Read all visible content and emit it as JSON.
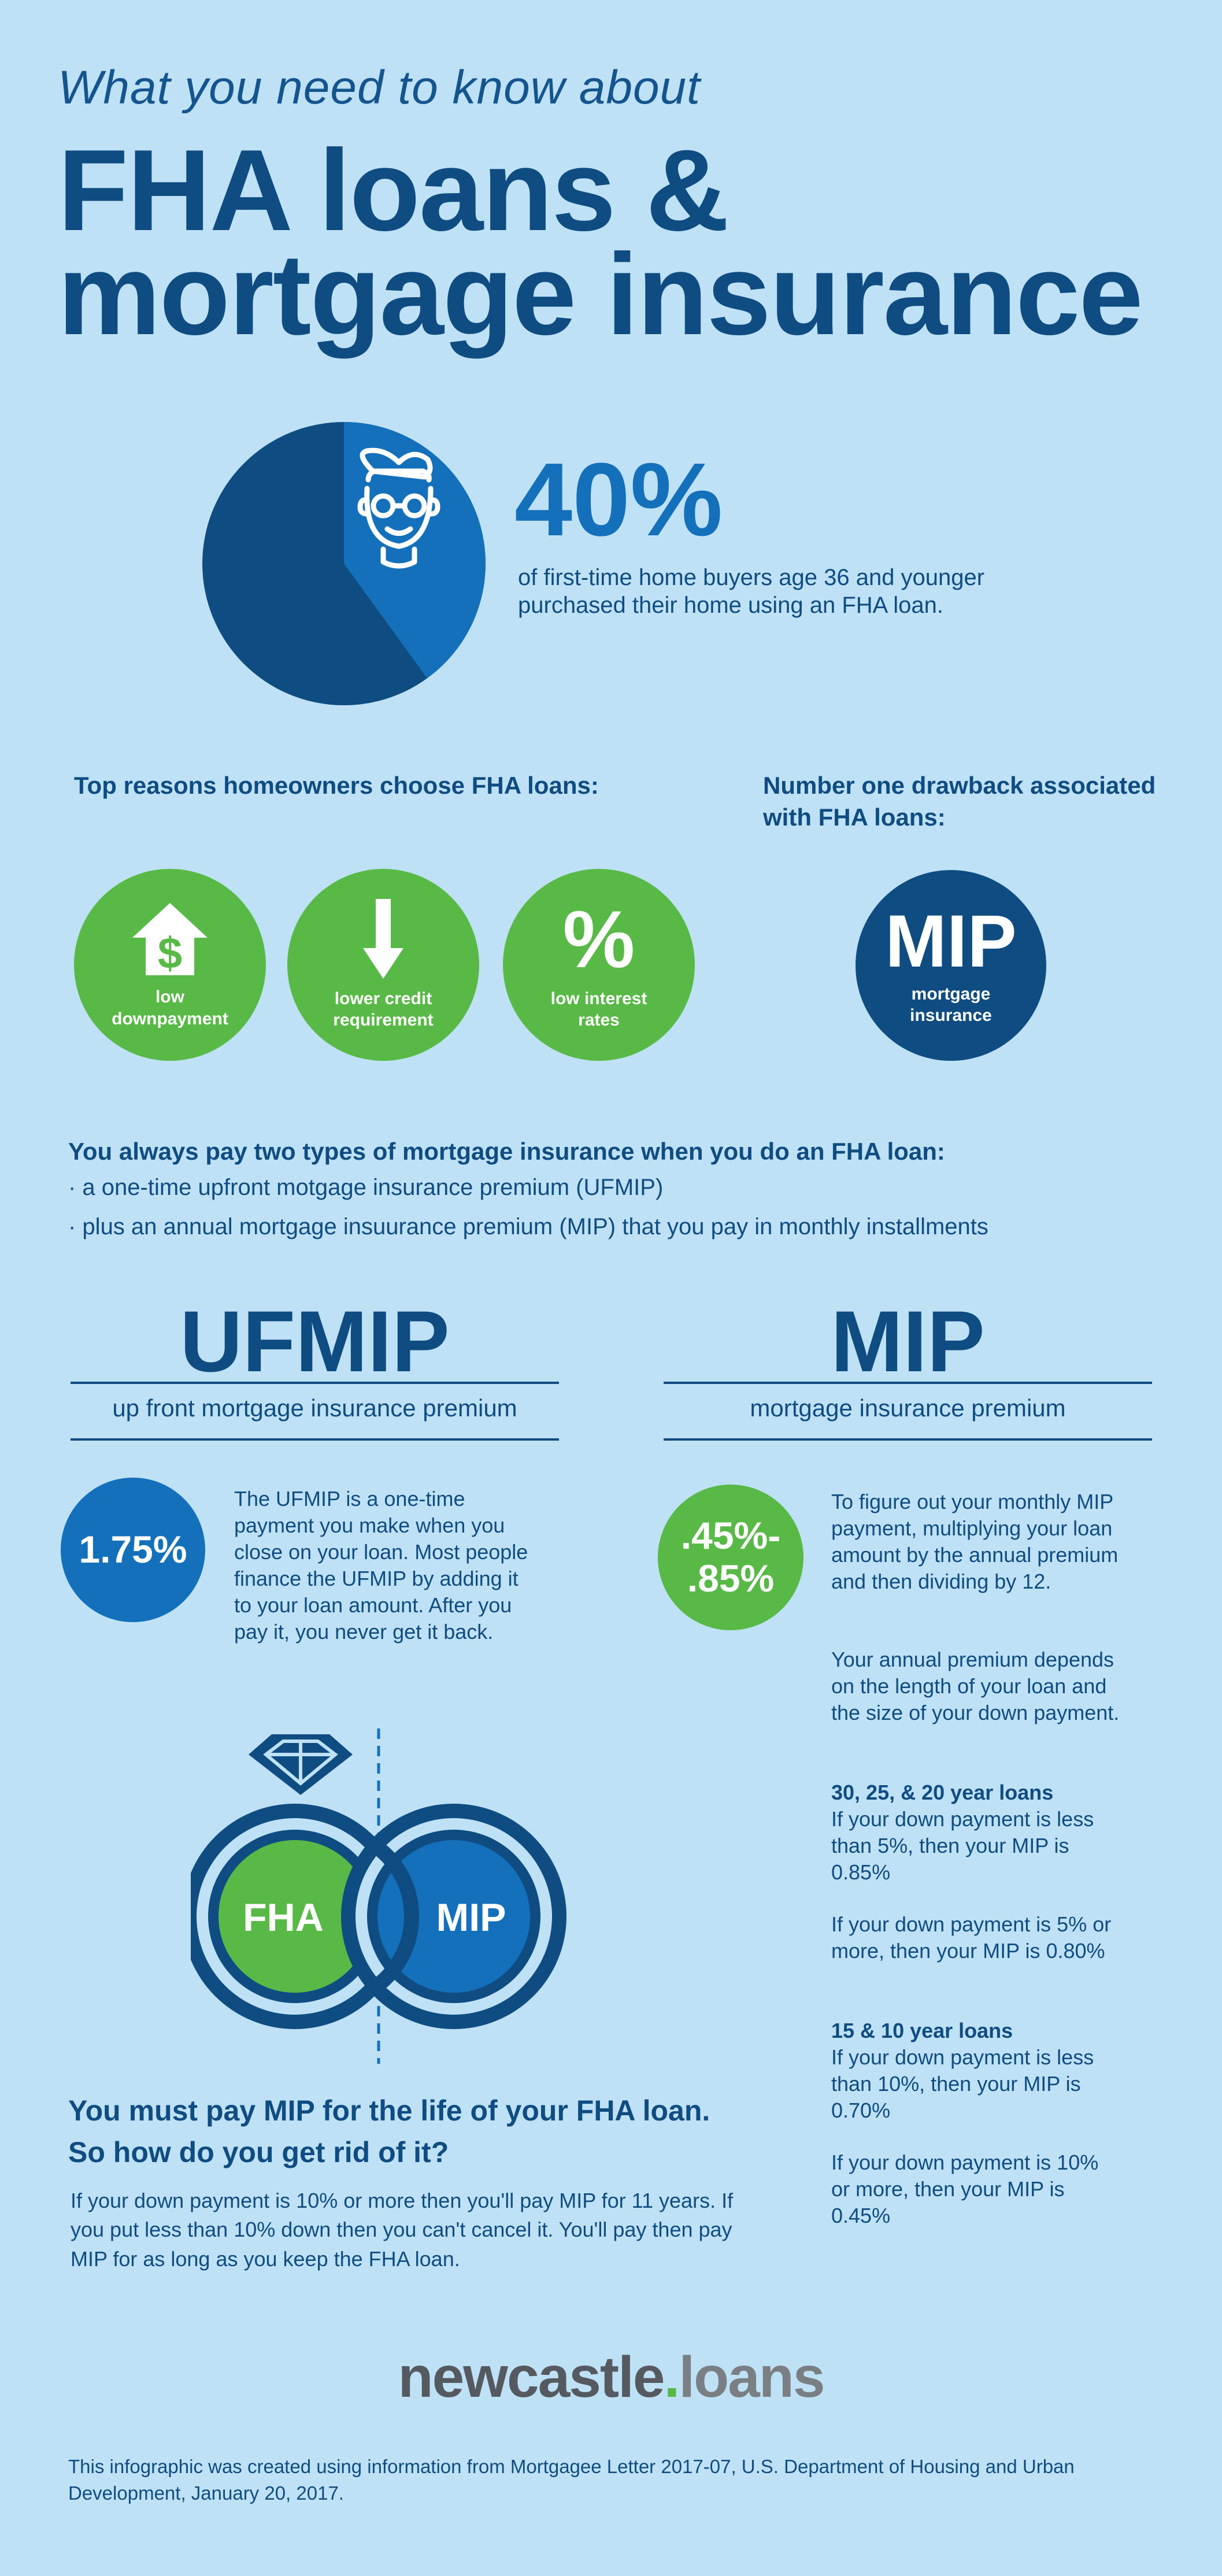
{
  "header": {
    "subtitle": "What you need to know about",
    "title_line1": "FHA loans &",
    "title_line2": "mortgage insurance"
  },
  "stat": {
    "value": "40%",
    "fraction": 0.4,
    "description": "of first-time home buyers age 36 and younger purchased their home using an FHA loan.",
    "colors": {
      "slice": "#1570bb",
      "rest": "#0f4c81"
    },
    "icon": "man-with-glasses-icon"
  },
  "reasons": {
    "heading": "Top reasons homeowners choose FHA loans:",
    "items": [
      {
        "label": "low downpayment",
        "icon": "house-dollar-icon"
      },
      {
        "label": "lower credit requirement",
        "icon": "arrow-down-icon"
      },
      {
        "label": "low interest rates",
        "icon": "percent-icon"
      }
    ]
  },
  "drawback": {
    "heading": "Number one drawback associated with FHA loans:",
    "badge": "MIP",
    "badge_label": "mortgage insurance"
  },
  "types": {
    "heading": "You always pay two types of mortgage insurance when you do an FHA loan:",
    "items": [
      "· a one-time upfront motgage insurance premium (UFMIP)",
      "· plus an annual mortgage insuurance premium (MIP) that you pay in monthly installments"
    ]
  },
  "ufmip": {
    "title": "UFMIP",
    "subtitle": "up front mortgage insurance premium",
    "rate": "1.75%",
    "text": "The UFMIP is a one-time payment you make when you close on your loan. Most people finance the UFMIP by adding it to your loan amount. After you pay it, you never get it back."
  },
  "mip": {
    "title": "MIP",
    "subtitle": "mortgage insurance premium",
    "rate_line1": ".45%-",
    "rate_line2": ".85%",
    "text1": "To figure out your monthly MIP payment, multiplying your loan amount by the annual premium and then dividing by 12.",
    "text2": "Your annual premium depends on the length of your loan and the size of your down payment.",
    "group1_heading": "30, 25, & 20 year loans",
    "group1_a": "If your down payment is less than 5%, then your MIP is 0.85%",
    "group1_b": "If your down payment is 5% or more, then your MIP is 0.80%",
    "group2_heading": "15 & 10 year loans",
    "group2_a": "If your down payment is less than 10%, then your MIP is 0.70%",
    "group2_b": "If your down payment is 10% or more, then your MIP is 0.45%"
  },
  "rings": {
    "left_label": "FHA",
    "right_label": "MIP",
    "icon": "diamond-icon"
  },
  "pay": {
    "heading1": "You must pay MIP for the life of your FHA loan.",
    "heading2": "So how do you get rid of it?",
    "body": "If your down payment is 10% or more then you'll pay MIP for 11 years.  If you put less than 10% down then you can't cancel it. You'll pay then pay MIP for as long as you keep the FHA loan."
  },
  "logo": {
    "part1": "newcastle",
    "dot": ".",
    "part2": "loans"
  },
  "footer": "This infographic was created using information from Mortgagee Letter 2017-07, U.S. Department of Housing and Urban Development, January 20, 2017."
}
